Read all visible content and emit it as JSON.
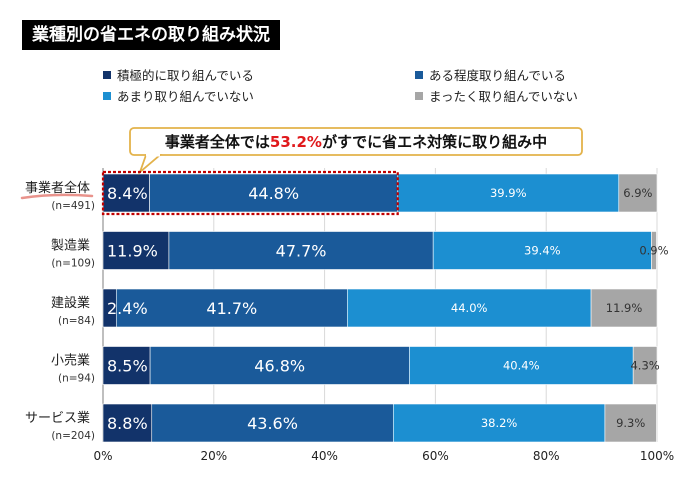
{
  "title": "業種別の省エネの取り組み状況",
  "callout": {
    "prefix": "事業者全体では",
    "highlight": "53.2%",
    "suffix": "がすでに省エネ対策に取り組み中"
  },
  "chart_data": {
    "type": "bar",
    "orientation": "horizontal",
    "stacked": "percent",
    "categories": [
      "事業者全体",
      "製造業",
      "建設業",
      "小売業",
      "サービス業"
    ],
    "category_sublabels": [
      "(n=491)",
      "(n=109)",
      "(n=84)",
      "(n=94)",
      "(n=204)"
    ],
    "series": [
      {
        "name": "積極的に取り組んでいる",
        "color": "#12336a",
        "values": [
          8.4,
          11.9,
          2.4,
          8.5,
          8.8
        ]
      },
      {
        "name": "ある程度取り組んでいる",
        "color": "#1a5a9a",
        "values": [
          44.8,
          47.7,
          41.7,
          46.8,
          43.6
        ]
      },
      {
        "name": "あまり取り組んでいない",
        "color": "#1c8fd1",
        "values": [
          39.9,
          39.4,
          44.0,
          40.4,
          38.2
        ]
      },
      {
        "name": "まったく取り組んでいない",
        "color": "#a6a6a6",
        "values": [
          6.9,
          0.9,
          11.9,
          4.3,
          9.3
        ]
      }
    ],
    "xlim": [
      0,
      100
    ],
    "x_ticks": [
      "0%",
      "20%",
      "40%",
      "60%",
      "80%",
      "100%"
    ],
    "gridlines": true,
    "legend_position": "top"
  }
}
